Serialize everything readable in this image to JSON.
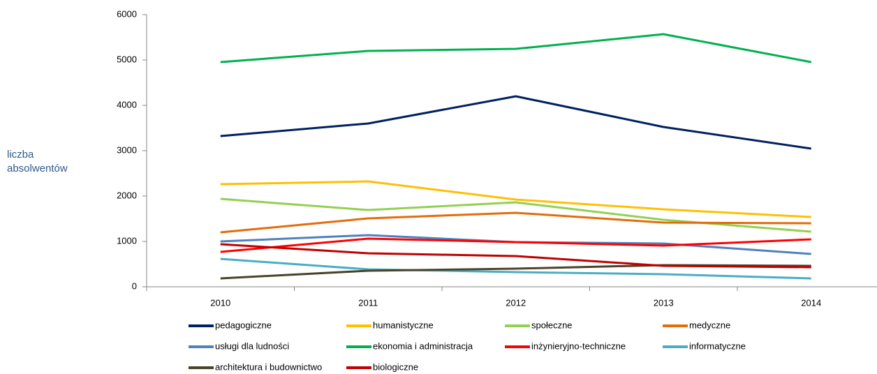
{
  "chart_data": {
    "type": "line",
    "y_label": "liczba absolwentów",
    "categories": [
      "2010",
      "2011",
      "2012",
      "2013",
      "2014"
    ],
    "ylim": [
      0,
      6000
    ],
    "yticks": [
      0,
      1000,
      2000,
      3000,
      4000,
      5000,
      6000
    ],
    "legend": "bottom",
    "series": [
      {
        "name": "pedagogiczne",
        "color": "#002060",
        "values": [
          3323,
          3600,
          4200,
          3523,
          3046
        ]
      },
      {
        "name": "humanistyczne",
        "color": "#ffc000",
        "values": [
          2262,
          2323,
          1923,
          1708,
          1538
        ]
      },
      {
        "name": "społeczne",
        "color": "#92d050",
        "values": [
          1938,
          1692,
          1862,
          1477,
          1215
        ]
      },
      {
        "name": "medyczne",
        "color": "#e46c0a",
        "values": [
          1200,
          1508,
          1631,
          1415,
          1400
        ]
      },
      {
        "name": "usługi dla ludności",
        "color": "#4f81bd",
        "values": [
          1000,
          1138,
          985,
          954,
          723
        ]
      },
      {
        "name": "ekonomia i administracja",
        "color": "#00b050",
        "values": [
          4954,
          5200,
          5246,
          5569,
          4954
        ]
      },
      {
        "name": "inżynieryjno-techniczne",
        "color": "#ff0000",
        "values": [
          769,
          1062,
          985,
          908,
          1046
        ]
      },
      {
        "name": "informatyczne",
        "color": "#4bacc6",
        "values": [
          615,
          385,
          323,
          277,
          185
        ]
      },
      {
        "name": "architektura i budownictwo",
        "color": "#494429",
        "values": [
          185,
          354,
          400,
          477,
          462
        ]
      },
      {
        "name": "biologiczne",
        "color": "#c00000",
        "values": [
          938,
          738,
          677,
          462,
          431
        ]
      }
    ]
  }
}
